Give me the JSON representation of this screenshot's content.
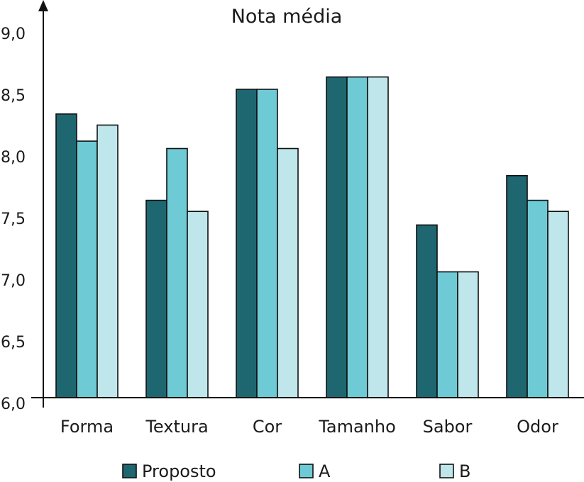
{
  "chart_data": {
    "type": "bar",
    "title": "Nota média",
    "categories": [
      "Forma",
      "Textura",
      "Cor",
      "Tamanho",
      "Sabor",
      "Odor"
    ],
    "series": [
      {
        "name": "Proposto",
        "color": "#1e6670",
        "values": [
          8.3,
          7.6,
          8.5,
          8.6,
          7.4,
          7.8
        ]
      },
      {
        "name": "A",
        "color": "#6ecad5",
        "values": [
          8.08,
          8.02,
          8.5,
          8.6,
          7.02,
          7.6
        ]
      },
      {
        "name": "B",
        "color": "#bfe6ea",
        "values": [
          8.21,
          7.51,
          8.02,
          8.6,
          7.02,
          7.51
        ]
      }
    ],
    "ylim": [
      6.0,
      9.0
    ],
    "yticks": [
      "6,0",
      "6,5",
      "7,0",
      "7,5",
      "8,0",
      "8,5",
      "9,0"
    ],
    "ytick_values": [
      6.0,
      6.5,
      7.0,
      7.5,
      8.0,
      8.5,
      9.0
    ],
    "xlabel": "",
    "ylabel": "",
    "grid": false,
    "legend_position": "bottom"
  }
}
